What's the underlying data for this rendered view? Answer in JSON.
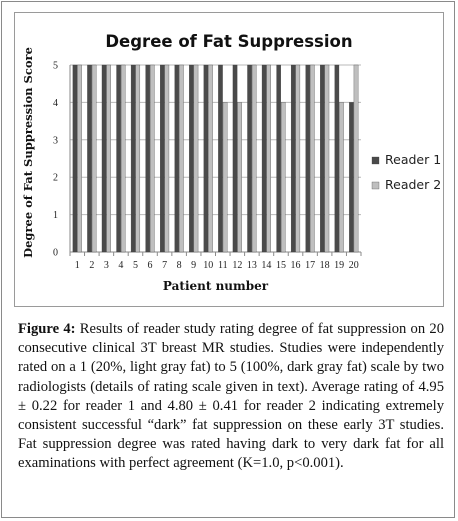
{
  "figure": {
    "label": "Figure 4:",
    "caption": " Results of reader study rating degree of fat suppression on 20 consecutive clinical 3T breast MR studies. Studies were independently rated on a 1 (20%, light gray fat) to 5 (100%, dark gray fat) scale by two radiologists (details of rating scale given in text). Average rating of 4.95 ± 0.22 for reader 1 and 4.80 ± 0.41 for reader 2 indicating extremely consistent successful “dark” fat suppression on these early 3T studies. Fat suppression degree was rated having dark to very dark fat for all examinations with perfect agreement (K=1.0, p<0.001)."
  },
  "chart_data": {
    "type": "bar",
    "title": "Degree of Fat Suppression",
    "xlabel": "Patient number",
    "ylabel": "Degree of Fat Suppression Score",
    "ylim": [
      0,
      5
    ],
    "yticks": [
      "0",
      "1",
      "2",
      "3",
      "4",
      "5"
    ],
    "grid": true,
    "legend_position": "right",
    "categories": [
      "1",
      "2",
      "3",
      "4",
      "5",
      "6",
      "7",
      "8",
      "9",
      "10",
      "11",
      "12",
      "13",
      "14",
      "15",
      "16",
      "17",
      "18",
      "19",
      "20"
    ],
    "series": [
      {
        "name": "Reader 1",
        "color": "#4a4a4a",
        "values": [
          5,
          5,
          5,
          5,
          5,
          5,
          5,
          5,
          5,
          5,
          5,
          5,
          5,
          5,
          5,
          5,
          5,
          5,
          5,
          4
        ]
      },
      {
        "name": "Reader 2",
        "color": "#bfbfbf",
        "values": [
          5,
          5,
          5,
          5,
          5,
          5,
          5,
          5,
          5,
          5,
          4,
          4,
          5,
          5,
          4,
          5,
          5,
          5,
          4,
          5
        ]
      }
    ]
  }
}
